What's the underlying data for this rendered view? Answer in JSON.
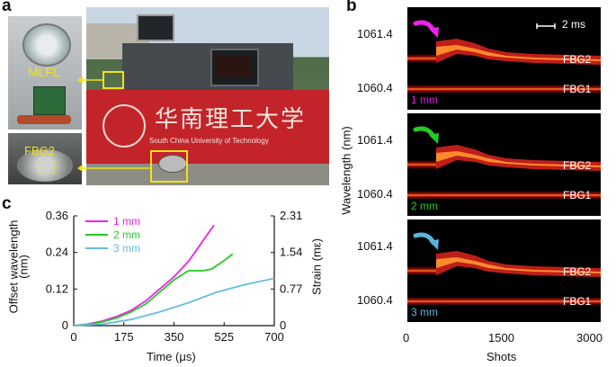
{
  "panel_a": {
    "letter": "a",
    "label_mlfl": "MLFL",
    "label_fbg2": "FBG2",
    "banner_text": "华南理工大学",
    "banner_subtitle": "South China University of Technology"
  },
  "panel_b": {
    "letter": "b",
    "scale_bar": "2 ms",
    "y_title": "Wavelength (nm)",
    "x_title": "Shots",
    "x_ticks": [
      "0",
      "1500",
      "3000"
    ],
    "y_tick_top": "1061.4",
    "y_tick_bottom": "1060.4",
    "subpanels": [
      {
        "label": "1 mm",
        "label_color": "#e21de2",
        "arrow_color": "#ee22ee",
        "fbg2": "FBG2",
        "fbg1": "FBG1"
      },
      {
        "label": "2 mm",
        "label_color": "#22d022",
        "arrow_color": "#22cc22",
        "fbg2": "FBG2",
        "fbg1": "FBG1"
      },
      {
        "label": "3 mm",
        "label_color": "#5fb9d9",
        "arrow_color": "#5ab4d6",
        "fbg2": "FBG2",
        "fbg1": "FBG1"
      }
    ]
  },
  "panel_c": {
    "letter": "c",
    "ylabel_left_1": "Offset wavelength",
    "ylabel_left_2": "(nm)",
    "ylabel_right": "Strain (mε)",
    "xlabel": "Time (μs)",
    "y_left_ticks": [
      "0",
      "0.12",
      "0.24",
      "0.36"
    ],
    "y_right_ticks": [
      "0",
      "0.77",
      "1.54",
      "2.31"
    ],
    "x_ticks": [
      "0",
      "175",
      "350",
      "525",
      "700"
    ]
  },
  "chart_data": {
    "type": "line",
    "xlabel": "Time (μs)",
    "ylabel": "Offset wavelength (nm)",
    "ylabel_right": "Strain (mε)",
    "xlim": [
      0,
      700
    ],
    "ylim": [
      0,
      0.36
    ],
    "ylim_right": [
      0,
      2.31
    ],
    "grid": false,
    "legend_position": "top-left",
    "series": [
      {
        "name": "1 mm",
        "color": "#ee22ee",
        "x": [
          0,
          50,
          100,
          150,
          200,
          250,
          300,
          350,
          400,
          430,
          460,
          490
        ],
        "y": [
          0,
          0.005,
          0.015,
          0.03,
          0.05,
          0.08,
          0.12,
          0.16,
          0.21,
          0.25,
          0.29,
          0.33
        ]
      },
      {
        "name": "2 mm",
        "color": "#22cc22",
        "x": [
          0,
          50,
          100,
          150,
          200,
          250,
          300,
          350,
          400,
          450,
          480,
          520,
          555
        ],
        "y": [
          0,
          0.004,
          0.012,
          0.025,
          0.045,
          0.07,
          0.11,
          0.15,
          0.18,
          0.18,
          0.185,
          0.21,
          0.235
        ]
      },
      {
        "name": "3 mm",
        "color": "#66bbdd",
        "x": [
          0,
          100,
          200,
          300,
          400,
          500,
          600,
          700
        ],
        "y": [
          0,
          0.005,
          0.02,
          0.045,
          0.075,
          0.11,
          0.135,
          0.155
        ]
      }
    ]
  }
}
